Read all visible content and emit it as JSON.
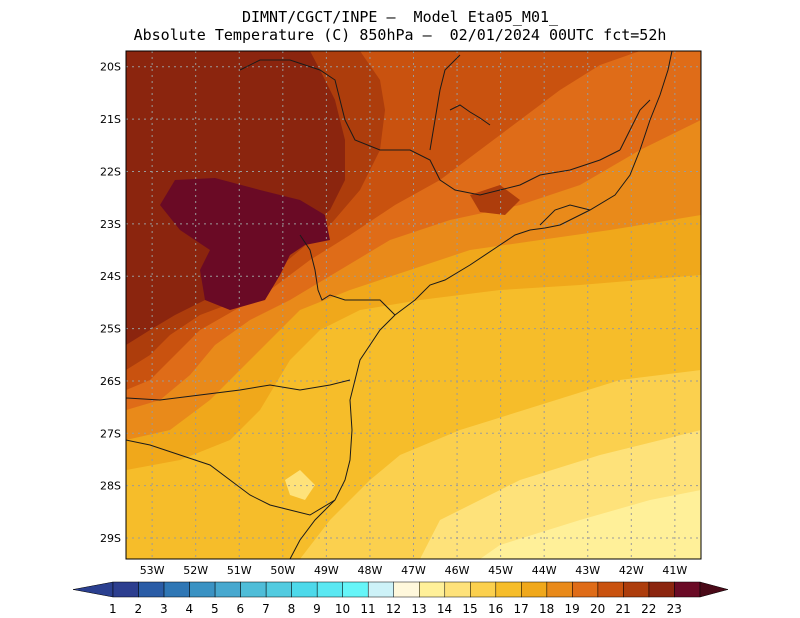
{
  "header": {
    "line1": "DIMNT/CGCT/INPE –  Model Eta05_M01_",
    "line2": "Absolute Temperature (C) 850hPa –  02/01/2024 00UTC fct=52h"
  },
  "map": {
    "region": "Southeast / South Brazil",
    "lat_labels": [
      "20S",
      "21S",
      "22S",
      "23S",
      "24S",
      "25S",
      "26S",
      "27S",
      "28S",
      "29S"
    ],
    "lon_labels": [
      "53W",
      "52W",
      "51W",
      "50W",
      "49W",
      "48W",
      "47W",
      "46W",
      "45W",
      "44W",
      "43W",
      "42W",
      "41W"
    ],
    "lon_range": [
      -53.6,
      -40.4
    ],
    "lat_range": [
      -29.4,
      -19.7
    ],
    "grid": "dotted"
  },
  "colorbar": {
    "labels": [
      "1",
      "2",
      "3",
      "4",
      "5",
      "6",
      "7",
      "8",
      "9",
      "10",
      "11",
      "12",
      "13",
      "14",
      "15",
      "16",
      "17",
      "18",
      "19",
      "20",
      "21",
      "22",
      "23"
    ],
    "colors": [
      "#2c3e8f",
      "#2a5ca6",
      "#2f77b5",
      "#3a92c3",
      "#47a8cf",
      "#4fbdd8",
      "#52cbe0",
      "#4dd9ea",
      "#5ae8f2",
      "#66f5f8",
      "#cdf2f8",
      "#fff8dc",
      "#fff099",
      "#fee27a",
      "#fbd04e",
      "#f6bd2a",
      "#f0a81b",
      "#e98a1a",
      "#df6c18",
      "#c9520f",
      "#ad3d0c",
      "#8b250e",
      "#6a0a25"
    ],
    "left_arrow_color": "#2a3f8f",
    "right_arrow_color": "#4a0a18"
  }
}
